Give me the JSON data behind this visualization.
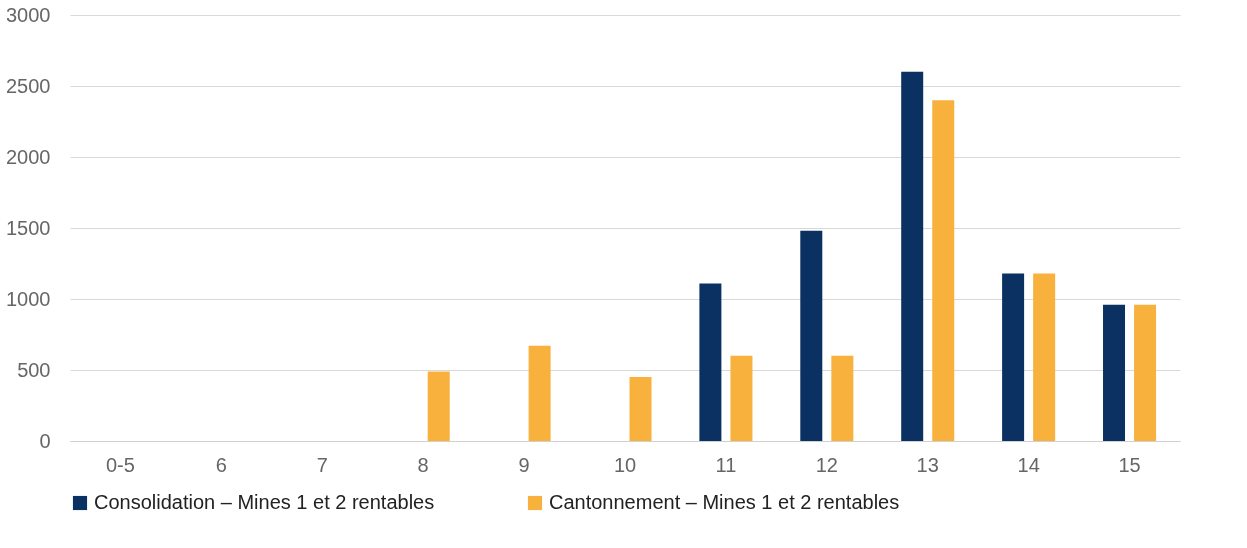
{
  "chart_data": {
    "type": "bar",
    "categories": [
      "0-5",
      "6",
      "7",
      "8",
      "9",
      "10",
      "11",
      "12",
      "13",
      "14",
      "15"
    ],
    "series": [
      {
        "name": "Consolidation – Mines 1 et 2 rentables",
        "color": "#0a3161",
        "values": [
          0,
          0,
          0,
          0,
          0,
          0,
          1110,
          1480,
          2600,
          1180,
          960
        ]
      },
      {
        "name": "Cantonnement – Mines 1 et 2 rentables",
        "color": "#f7b13c",
        "values": [
          0,
          0,
          0,
          490,
          670,
          450,
          600,
          600,
          2400,
          1180,
          960
        ]
      }
    ],
    "ylim": [
      0,
      3000
    ],
    "yticks": [
      0,
      500,
      1000,
      1500,
      2000,
      2500,
      3000
    ],
    "grid": "y",
    "legend": "bottom"
  }
}
